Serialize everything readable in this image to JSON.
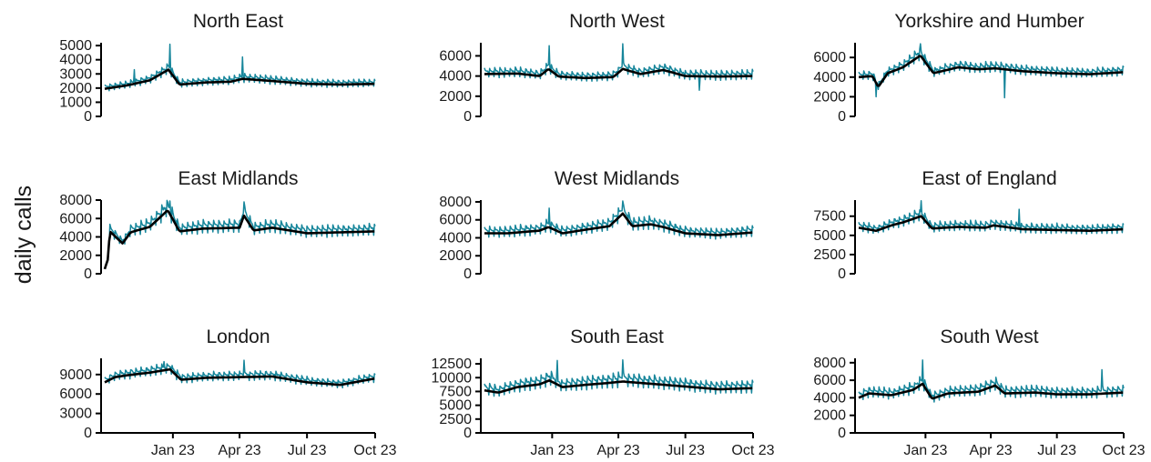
{
  "y_axis_label": "daily calls",
  "colors": {
    "daily_line": "#17869b",
    "trend_line": "#000000",
    "axis": "#000000",
    "background": "#ffffff"
  },
  "x_axis": {
    "start": "2022-10-01",
    "end": "2023-10-01",
    "ticks": [
      {
        "date": "2023-01-01",
        "label": "Jan 23"
      },
      {
        "date": "2023-04-01",
        "label": "Apr 23"
      },
      {
        "date": "2023-07-01",
        "label": "Jul 23"
      },
      {
        "date": "2023-10-01",
        "label": "Oct 23"
      }
    ]
  },
  "chart_data": [
    {
      "type": "line",
      "title": "North East",
      "ylim": [
        0,
        5200
      ],
      "yticks": [
        0,
        1000,
        2000,
        3000,
        4000,
        5000
      ],
      "series": [
        {
          "role": "daily",
          "weekday_amplitude": 0.14,
          "spikes": [
            {
              "date": "2022-12-28",
              "value": 5100
            },
            {
              "date": "2023-04-05",
              "value": 4200
            },
            {
              "date": "2022-11-10",
              "value": 3300
            }
          ]
        },
        {
          "role": "trend",
          "points": [
            [
              "2022-10-01",
              1950
            ],
            [
              "2022-11-01",
              2200
            ],
            [
              "2022-12-01",
              2550
            ],
            [
              "2022-12-26",
              3300
            ],
            [
              "2023-01-10",
              2250
            ],
            [
              "2023-02-15",
              2400
            ],
            [
              "2023-03-20",
              2450
            ],
            [
              "2023-04-05",
              2650
            ],
            [
              "2023-05-15",
              2500
            ],
            [
              "2023-07-01",
              2300
            ],
            [
              "2023-08-15",
              2250
            ],
            [
              "2023-10-01",
              2300
            ]
          ]
        }
      ]
    },
    {
      "type": "line",
      "title": "North West",
      "ylim": [
        0,
        7300
      ],
      "yticks": [
        0,
        2000,
        4000,
        6000
      ],
      "series": [
        {
          "role": "daily",
          "weekday_amplitude": 0.14,
          "spikes": [
            {
              "date": "2022-12-28",
              "value": 7000
            },
            {
              "date": "2023-04-07",
              "value": 7200
            },
            {
              "date": "2023-07-20",
              "value": 2600
            }
          ]
        },
        {
          "role": "trend",
          "points": [
            [
              "2022-10-01",
              4200
            ],
            [
              "2022-11-15",
              4250
            ],
            [
              "2022-12-15",
              4000
            ],
            [
              "2022-12-27",
              4700
            ],
            [
              "2023-01-10",
              3950
            ],
            [
              "2023-02-15",
              3800
            ],
            [
              "2023-03-25",
              3900
            ],
            [
              "2023-04-07",
              4700
            ],
            [
              "2023-05-01",
              4200
            ],
            [
              "2023-06-01",
              4600
            ],
            [
              "2023-07-01",
              4000
            ],
            [
              "2023-08-15",
              3950
            ],
            [
              "2023-10-01",
              4000
            ]
          ]
        }
      ]
    },
    {
      "type": "line",
      "title": "Yorkshire and Humber",
      "ylim": [
        0,
        7500
      ],
      "yticks": [
        0,
        2000,
        4000,
        6000
      ],
      "series": [
        {
          "role": "daily",
          "weekday_amplitude": 0.13,
          "spikes": [
            {
              "date": "2022-10-25",
              "value": 2000
            },
            {
              "date": "2022-12-25",
              "value": 7400
            },
            {
              "date": "2023-04-20",
              "value": 1900
            }
          ]
        },
        {
          "role": "trend",
          "points": [
            [
              "2022-10-01",
              4000
            ],
            [
              "2022-10-20",
              4100
            ],
            [
              "2022-10-28",
              3000
            ],
            [
              "2022-11-10",
              4400
            ],
            [
              "2022-12-01",
              5000
            ],
            [
              "2022-12-25",
              6200
            ],
            [
              "2023-01-12",
              4400
            ],
            [
              "2023-02-15",
              5000
            ],
            [
              "2023-03-15",
              4800
            ],
            [
              "2023-04-07",
              4900
            ],
            [
              "2023-05-15",
              4600
            ],
            [
              "2023-07-01",
              4400
            ],
            [
              "2023-08-15",
              4300
            ],
            [
              "2023-10-01",
              4500
            ]
          ]
        }
      ]
    },
    {
      "type": "line",
      "title": "East Midlands",
      "ylim": [
        0,
        8000
      ],
      "yticks": [
        0,
        2000,
        4000,
        6000,
        8000
      ],
      "series": [
        {
          "role": "daily",
          "weekday_amplitude": 0.17,
          "spikes": [
            {
              "date": "2022-12-28",
              "value": 7900
            },
            {
              "date": "2023-04-07",
              "value": 7800
            }
          ]
        },
        {
          "role": "trend",
          "points": [
            [
              "2022-10-01",
              500
            ],
            [
              "2022-10-05",
              1500
            ],
            [
              "2022-10-08",
              4600
            ],
            [
              "2022-10-25",
              3300
            ],
            [
              "2022-11-05",
              4500
            ],
            [
              "2022-12-01",
              5100
            ],
            [
              "2022-12-25",
              6900
            ],
            [
              "2023-01-10",
              4600
            ],
            [
              "2023-02-10",
              4900
            ],
            [
              "2023-04-01",
              5000
            ],
            [
              "2023-04-07",
              6300
            ],
            [
              "2023-04-20",
              4700
            ],
            [
              "2023-05-15",
              5000
            ],
            [
              "2023-07-01",
              4400
            ],
            [
              "2023-10-01",
              4600
            ]
          ]
        }
      ]
    },
    {
      "type": "line",
      "title": "West Midlands",
      "ylim": [
        0,
        8200
      ],
      "yticks": [
        0,
        2000,
        4000,
        6000,
        8000
      ],
      "series": [
        {
          "role": "daily",
          "weekday_amplitude": 0.16,
          "spikes": [
            {
              "date": "2023-04-07",
              "value": 8100
            },
            {
              "date": "2022-12-28",
              "value": 7300
            }
          ]
        },
        {
          "role": "trend",
          "points": [
            [
              "2022-10-01",
              4500
            ],
            [
              "2022-11-01",
              4500
            ],
            [
              "2022-12-15",
              4800
            ],
            [
              "2022-12-27",
              5200
            ],
            [
              "2023-01-15",
              4500
            ],
            [
              "2023-02-15",
              4900
            ],
            [
              "2023-03-20",
              5300
            ],
            [
              "2023-04-07",
              6700
            ],
            [
              "2023-04-20",
              5300
            ],
            [
              "2023-05-15",
              5500
            ],
            [
              "2023-06-01",
              5200
            ],
            [
              "2023-07-01",
              4500
            ],
            [
              "2023-08-15",
              4300
            ],
            [
              "2023-10-01",
              4600
            ]
          ]
        }
      ]
    },
    {
      "type": "line",
      "title": "East of England",
      "ylim": [
        0,
        9600
      ],
      "yticks": [
        0,
        2500,
        5000,
        7500
      ],
      "series": [
        {
          "role": "daily",
          "weekday_amplitude": 0.13,
          "spikes": [
            {
              "date": "2022-12-26",
              "value": 9500
            },
            {
              "date": "2023-05-10",
              "value": 8400
            }
          ]
        },
        {
          "role": "trend",
          "points": [
            [
              "2022-10-01",
              6000
            ],
            [
              "2022-10-25",
              5600
            ],
            [
              "2022-11-15",
              6300
            ],
            [
              "2022-12-01",
              6700
            ],
            [
              "2022-12-26",
              7500
            ],
            [
              "2023-01-10",
              5900
            ],
            [
              "2023-02-15",
              6100
            ],
            [
              "2023-03-25",
              6000
            ],
            [
              "2023-04-05",
              6300
            ],
            [
              "2023-05-15",
              5800
            ],
            [
              "2023-07-01",
              5700
            ],
            [
              "2023-08-15",
              5600
            ],
            [
              "2023-10-01",
              5800
            ]
          ]
        }
      ]
    },
    {
      "type": "line",
      "title": "London",
      "ylim": [
        0,
        11500
      ],
      "yticks": [
        0,
        3000,
        6000,
        9000
      ],
      "series": [
        {
          "role": "daily",
          "weekday_amplitude": 0.1,
          "spikes": [
            {
              "date": "2022-12-20",
              "value": 11000
            },
            {
              "date": "2023-04-07",
              "value": 11200
            }
          ]
        },
        {
          "role": "trend",
          "points": [
            [
              "2022-10-01",
              7800
            ],
            [
              "2022-10-15",
              8600
            ],
            [
              "2022-11-01",
              8900
            ],
            [
              "2022-12-01",
              9300
            ],
            [
              "2022-12-28",
              9800
            ],
            [
              "2023-01-12",
              8200
            ],
            [
              "2023-02-15",
              8500
            ],
            [
              "2023-04-01",
              8600
            ],
            [
              "2023-05-15",
              8700
            ],
            [
              "2023-07-01",
              7800
            ],
            [
              "2023-08-15",
              7400
            ],
            [
              "2023-10-01",
              8400
            ]
          ]
        }
      ]
    },
    {
      "type": "line",
      "title": "South East",
      "ylim": [
        0,
        13500
      ],
      "yticks": [
        0,
        2500,
        5000,
        7500,
        10000,
        12500
      ],
      "series": [
        {
          "role": "daily",
          "weekday_amplitude": 0.17,
          "spikes": [
            {
              "date": "2023-01-08",
              "value": 13100
            },
            {
              "date": "2023-04-07",
              "value": 13200
            }
          ]
        },
        {
          "role": "trend",
          "points": [
            [
              "2022-10-01",
              7700
            ],
            [
              "2022-10-20",
              7300
            ],
            [
              "2022-11-15",
              8300
            ],
            [
              "2022-12-15",
              8800
            ],
            [
              "2022-12-28",
              9500
            ],
            [
              "2023-01-15",
              8300
            ],
            [
              "2023-02-15",
              8700
            ],
            [
              "2023-03-15",
              9000
            ],
            [
              "2023-04-07",
              9300
            ],
            [
              "2023-05-15",
              8900
            ],
            [
              "2023-07-01",
              8400
            ],
            [
              "2023-08-15",
              7900
            ],
            [
              "2023-10-01",
              8100
            ]
          ]
        }
      ]
    },
    {
      "type": "line",
      "title": "South West",
      "ylim": [
        0,
        8500
      ],
      "yticks": [
        0,
        2000,
        4000,
        6000,
        8000
      ],
      "series": [
        {
          "role": "daily",
          "weekday_amplitude": 0.17,
          "spikes": [
            {
              "date": "2022-12-28",
              "value": 8300
            },
            {
              "date": "2023-09-01",
              "value": 7200
            }
          ]
        },
        {
          "role": "trend",
          "points": [
            [
              "2022-10-01",
              4000
            ],
            [
              "2022-10-15",
              4500
            ],
            [
              "2022-11-15",
              4300
            ],
            [
              "2022-12-15",
              4900
            ],
            [
              "2022-12-28",
              5600
            ],
            [
              "2023-01-10",
              3900
            ],
            [
              "2023-02-01",
              4500
            ],
            [
              "2023-03-15",
              4700
            ],
            [
              "2023-04-07",
              5400
            ],
            [
              "2023-04-20",
              4500
            ],
            [
              "2023-06-01",
              4600
            ],
            [
              "2023-07-01",
              4400
            ],
            [
              "2023-08-15",
              4400
            ],
            [
              "2023-10-01",
              4600
            ]
          ]
        }
      ]
    }
  ]
}
